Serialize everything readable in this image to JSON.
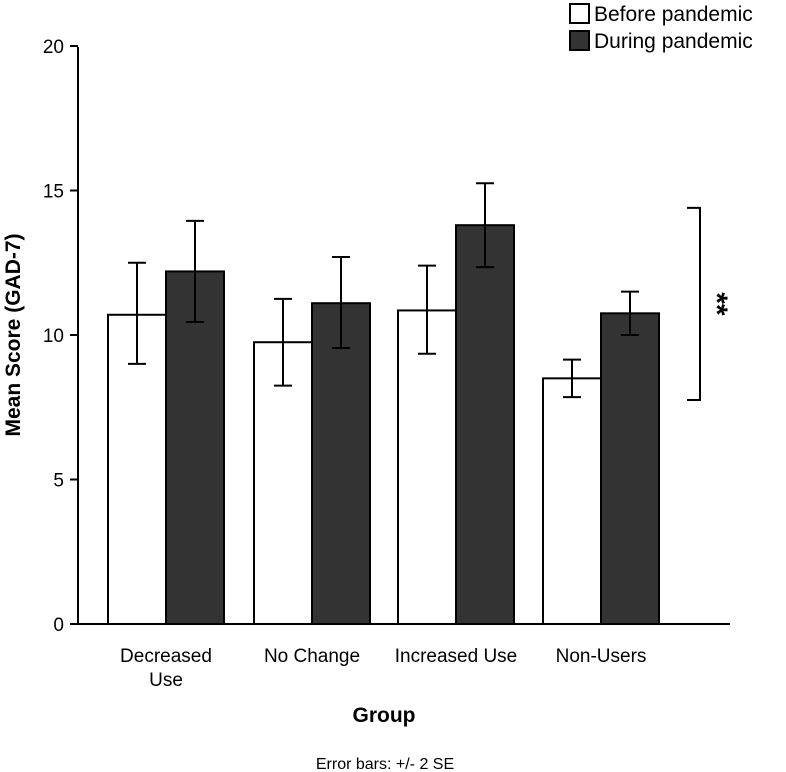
{
  "chart_data": {
    "type": "bar",
    "categories": [
      [
        "Decreased",
        "Use"
      ],
      [
        "No Change"
      ],
      [
        "Increased Use"
      ],
      [
        "Non-Users"
      ]
    ],
    "series": [
      {
        "name": "Before pandemic",
        "color": "#ffffff",
        "values": [
          10.7,
          9.75,
          10.85,
          8.5
        ],
        "err_low": [
          9.0,
          8.25,
          9.35,
          7.85
        ],
        "err_high": [
          12.5,
          11.25,
          12.4,
          9.15
        ]
      },
      {
        "name": "During pandemic",
        "color": "#333333",
        "values": [
          12.2,
          11.1,
          13.8,
          10.75
        ],
        "err_low": [
          10.45,
          9.55,
          12.35,
          10.0
        ],
        "err_high": [
          13.95,
          12.7,
          15.25,
          11.5
        ]
      }
    ],
    "ylim": [
      0,
      20
    ],
    "yticks": [
      0,
      5,
      10,
      15,
      20
    ],
    "xlabel": "Group",
    "ylabel": "Mean Score (GAD-7)",
    "footnote": "Error bars: +/- 2 SE",
    "significance": {
      "label": "**",
      "y_range": [
        7.75,
        14.4
      ]
    },
    "legend_position": "top-right",
    "grid": false
  }
}
